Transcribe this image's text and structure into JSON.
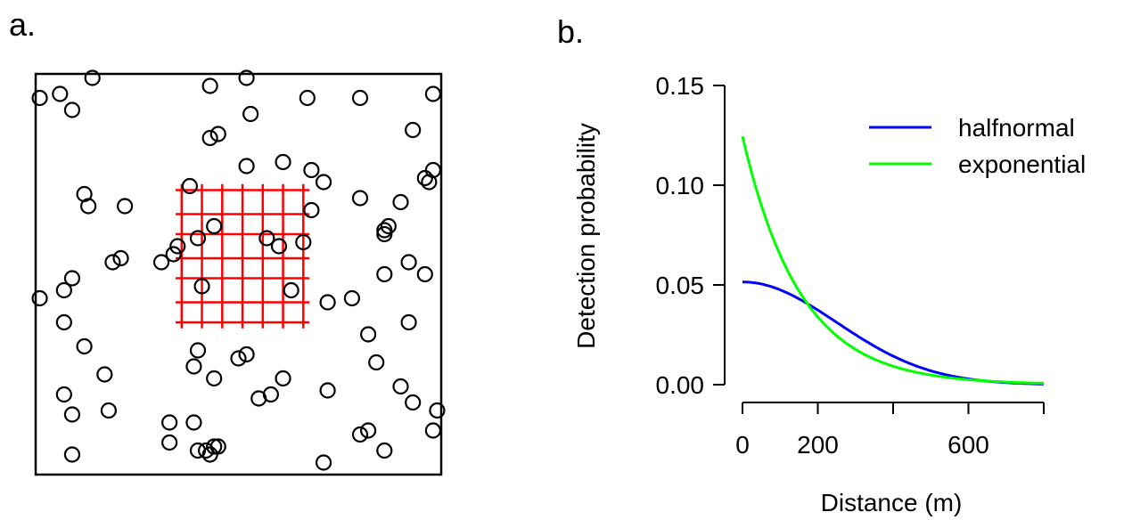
{
  "panels": {
    "a": "a.",
    "b": "b."
  },
  "chart_data": [
    {
      "type": "scatter",
      "panel": "a.",
      "description_only": false,
      "xlim": [
        0,
        1
      ],
      "ylim": [
        0,
        1
      ],
      "grid": {
        "color": "#ff0000",
        "x_lines": [
          0.36,
          0.41,
          0.46,
          0.51,
          0.56,
          0.61,
          0.66
        ],
        "y_lines": [
          0.38,
          0.43,
          0.49,
          0.54,
          0.6,
          0.65,
          0.71
        ],
        "x_range": [
          0.345,
          0.675
        ],
        "y_range": [
          0.365,
          0.725
        ]
      },
      "points": [
        [
          0.01,
          0.94
        ],
        [
          0.06,
          0.95
        ],
        [
          0.09,
          0.91
        ],
        [
          0.14,
          0.99
        ],
        [
          0.43,
          0.97
        ],
        [
          0.52,
          0.99
        ],
        [
          0.67,
          0.94
        ],
        [
          0.8,
          0.94
        ],
        [
          0.98,
          0.95
        ],
        [
          0.53,
          0.9
        ],
        [
          0.43,
          0.84
        ],
        [
          0.45,
          0.85
        ],
        [
          0.93,
          0.86
        ],
        [
          0.52,
          0.77
        ],
        [
          0.61,
          0.78
        ],
        [
          0.68,
          0.76
        ],
        [
          0.71,
          0.73
        ],
        [
          0.98,
          0.76
        ],
        [
          0.96,
          0.74
        ],
        [
          0.97,
          0.73
        ],
        [
          0.38,
          0.72
        ],
        [
          0.12,
          0.7
        ],
        [
          0.13,
          0.67
        ],
        [
          0.22,
          0.67
        ],
        [
          0.8,
          0.69
        ],
        [
          0.9,
          0.68
        ],
        [
          0.68,
          0.66
        ],
        [
          0.87,
          0.62
        ],
        [
          0.86,
          0.61
        ],
        [
          0.86,
          0.6
        ],
        [
          0.44,
          0.62
        ],
        [
          0.57,
          0.59
        ],
        [
          0.6,
          0.57
        ],
        [
          0.66,
          0.58
        ],
        [
          0.4,
          0.59
        ],
        [
          0.35,
          0.57
        ],
        [
          0.34,
          0.55
        ],
        [
          0.19,
          0.53
        ],
        [
          0.21,
          0.54
        ],
        [
          0.31,
          0.53
        ],
        [
          0.92,
          0.53
        ],
        [
          0.86,
          0.5
        ],
        [
          0.96,
          0.5
        ],
        [
          0.09,
          0.49
        ],
        [
          0.07,
          0.46
        ],
        [
          0.41,
          0.47
        ],
        [
          0.63,
          0.46
        ],
        [
          0.01,
          0.44
        ],
        [
          0.78,
          0.44
        ],
        [
          0.72,
          0.43
        ],
        [
          0.07,
          0.38
        ],
        [
          0.92,
          0.38
        ],
        [
          0.82,
          0.35
        ],
        [
          0.12,
          0.32
        ],
        [
          0.4,
          0.31
        ],
        [
          0.39,
          0.27
        ],
        [
          0.5,
          0.29
        ],
        [
          0.52,
          0.3
        ],
        [
          0.84,
          0.28
        ],
        [
          0.17,
          0.25
        ],
        [
          0.44,
          0.24
        ],
        [
          0.61,
          0.24
        ],
        [
          0.9,
          0.22
        ],
        [
          0.72,
          0.21
        ],
        [
          0.07,
          0.2
        ],
        [
          0.55,
          0.19
        ],
        [
          0.58,
          0.2
        ],
        [
          0.93,
          0.18
        ],
        [
          0.18,
          0.16
        ],
        [
          0.09,
          0.15
        ],
        [
          0.99,
          0.16
        ],
        [
          0.33,
          0.13
        ],
        [
          0.39,
          0.13
        ],
        [
          0.82,
          0.11
        ],
        [
          0.8,
          0.1
        ],
        [
          0.98,
          0.11
        ],
        [
          0.33,
          0.08
        ],
        [
          0.42,
          0.06
        ],
        [
          0.44,
          0.07
        ],
        [
          0.45,
          0.07
        ],
        [
          0.4,
          0.06
        ],
        [
          0.43,
          0.05
        ],
        [
          0.09,
          0.05
        ],
        [
          0.86,
          0.06
        ],
        [
          0.71,
          0.03
        ]
      ]
    },
    {
      "type": "line",
      "panel": "b.",
      "xlabel": "Distance  (m)",
      "ylabel": "Detection probability",
      "xlim": [
        0,
        800
      ],
      "ylim": [
        0,
        0.15
      ],
      "x_ticks": [
        0,
        200,
        400,
        600,
        800
      ],
      "x_tick_labels": [
        "0",
        "200",
        "",
        "600",
        ""
      ],
      "y_ticks": [
        0,
        0.05,
        0.1,
        0.15
      ],
      "y_tick_labels": [
        "0.00",
        "0.05",
        "0.10",
        "0.15"
      ],
      "legend_position": "top-right",
      "series": [
        {
          "name": "halfnormal",
          "color": "#0000ff",
          "function": "halfnormal",
          "g0": 0.0515,
          "sigma": 250
        },
        {
          "name": "exponential",
          "color": "#00ff00",
          "function": "exponential",
          "g0": 0.1245,
          "rate": 0.0065
        }
      ]
    }
  ]
}
